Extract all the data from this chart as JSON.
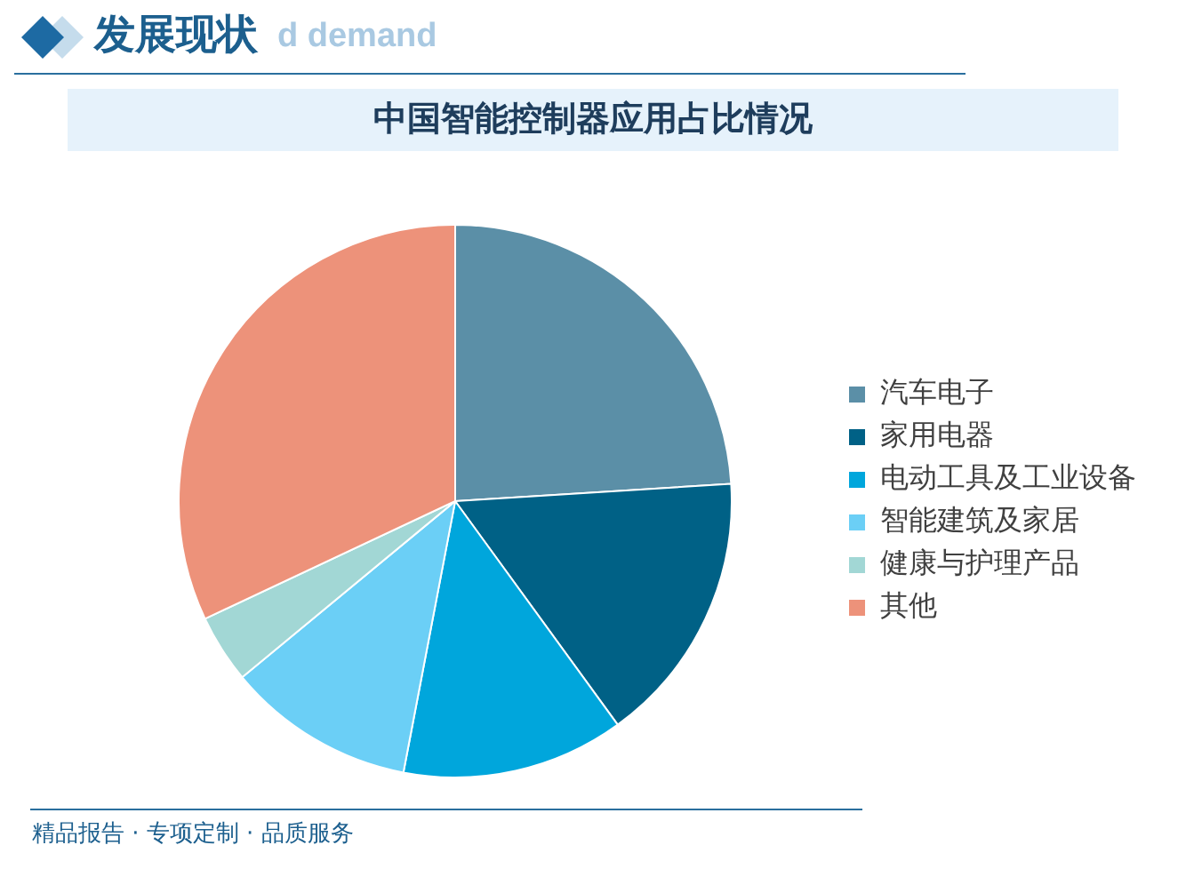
{
  "chart_data": {
    "type": "pie",
    "title": "中国智能控制器应用占比情况",
    "categories": [
      "汽车电子",
      "家用电器",
      "电动工具及工业设备",
      "智能建筑及家居",
      "健康与护理产品",
      "其他"
    ],
    "values": [
      24,
      16,
      13,
      11,
      4,
      32
    ],
    "colors": [
      "#5b8fa7",
      "#006186",
      "#00a6dc",
      "#6bcff6",
      "#a2d7d5",
      "#ed927a"
    ],
    "legend": "right",
    "annotations": [
      "发展现状",
      "d demand",
      "精品报告 · 专项定制 · 品质服务"
    ]
  }
}
